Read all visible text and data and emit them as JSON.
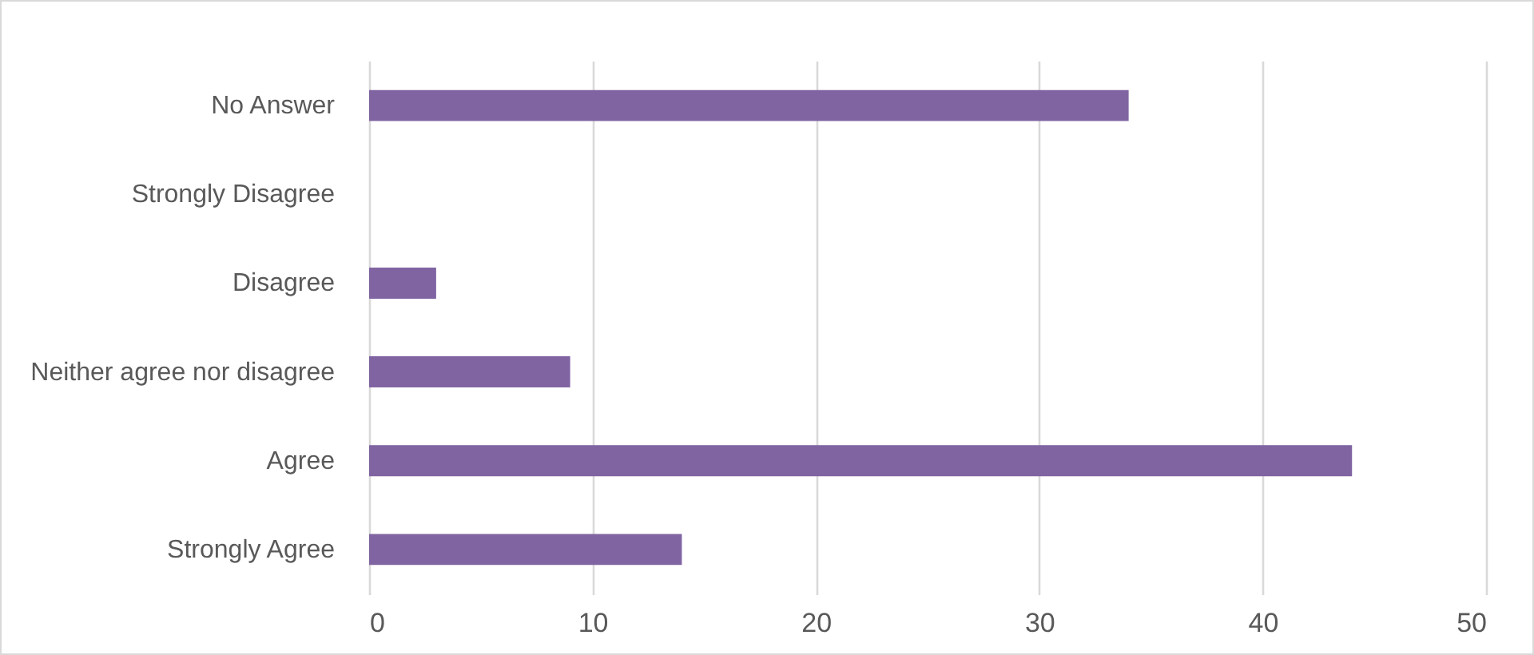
{
  "chart_data": {
    "type": "bar",
    "orientation": "horizontal",
    "categories": [
      "No Answer",
      "Strongly Disagree",
      "Disagree",
      "Neither agree nor disagree",
      "Agree",
      "Strongly Agree"
    ],
    "values": [
      34,
      0,
      3,
      9,
      44,
      14
    ],
    "color": "#8064a2",
    "xlim": [
      0,
      50
    ],
    "xticks": [
      0,
      10,
      20,
      30,
      40,
      50
    ],
    "grid": "x"
  }
}
